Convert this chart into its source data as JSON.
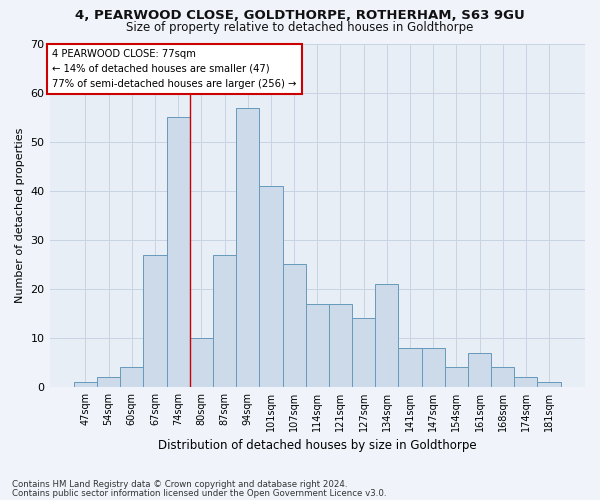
{
  "title1": "4, PEARWOOD CLOSE, GOLDTHORPE, ROTHERHAM, S63 9GU",
  "title2": "Size of property relative to detached houses in Goldthorpe",
  "xlabel": "Distribution of detached houses by size in Goldthorpe",
  "ylabel": "Number of detached properties",
  "bar_labels": [
    "47sqm",
    "54sqm",
    "60sqm",
    "67sqm",
    "74sqm",
    "80sqm",
    "87sqm",
    "94sqm",
    "101sqm",
    "107sqm",
    "114sqm",
    "121sqm",
    "127sqm",
    "134sqm",
    "141sqm",
    "147sqm",
    "154sqm",
    "161sqm",
    "168sqm",
    "174sqm",
    "181sqm"
  ],
  "bar_values": [
    1,
    2,
    4,
    27,
    55,
    10,
    27,
    57,
    41,
    25,
    17,
    17,
    14,
    21,
    8,
    8,
    4,
    7,
    4,
    2,
    1
  ],
  "bar_color": "#ccdaea",
  "bar_edge_color": "#6699bb",
  "grid_color": "#c8d4e4",
  "background_color": "#e8eef6",
  "fig_background_color": "#f0f4fa",
  "annotation_box_color": "#ffffff",
  "annotation_border_color": "#cc0000",
  "vline_color": "#cc0000",
  "vline_x": 4.5,
  "annotation_text1": "4 PEARWOOD CLOSE: 77sqm",
  "annotation_text2": "← 14% of detached houses are smaller (47)",
  "annotation_text3": "77% of semi-detached houses are larger (256) →",
  "ylim": [
    0,
    70
  ],
  "yticks": [
    0,
    10,
    20,
    30,
    40,
    50,
    60,
    70
  ],
  "footnote1": "Contains HM Land Registry data © Crown copyright and database right 2024.",
  "footnote2": "Contains public sector information licensed under the Open Government Licence v3.0."
}
